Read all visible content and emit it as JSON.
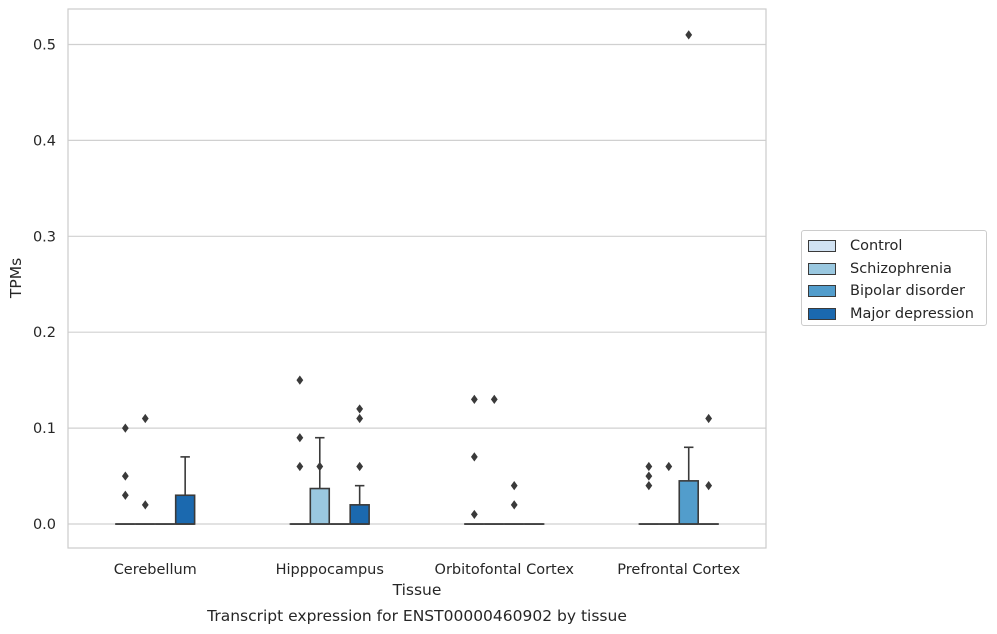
{
  "chart_data": {
    "type": "box",
    "title": "",
    "caption": "Transcript expression for ENST00000460902 by tissue",
    "xlabel": "Tissue",
    "ylabel": "TPMs",
    "ylim": [
      -0.025,
      0.537
    ],
    "yticks": [
      0.0,
      0.1,
      0.2,
      0.3,
      0.4,
      0.5
    ],
    "ytick_labels": [
      "0.0",
      "0.1",
      "0.2",
      "0.3",
      "0.4",
      "0.5"
    ],
    "grid": true,
    "legend_position": "right",
    "categories": [
      "Cerebellum",
      "Hipppocampus",
      "Orbitofontal Cortex",
      "Prefrontal Cortex"
    ],
    "series": [
      {
        "name": "Control",
        "color": "#d1e2f2",
        "boxes": [
          {
            "q1": 0,
            "median": 0,
            "q3": 0,
            "whislo": 0,
            "whishi": 0,
            "fliers": [
              0.03,
              0.05,
              0.1
            ]
          },
          {
            "q1": 0,
            "median": 0,
            "q3": 0,
            "whislo": 0,
            "whishi": 0,
            "fliers": [
              0.06,
              0.09,
              0.15
            ]
          },
          {
            "q1": 0,
            "median": 0,
            "q3": 0,
            "whislo": 0,
            "whishi": 0,
            "fliers": [
              0.01,
              0.07,
              0.13
            ]
          },
          {
            "q1": 0,
            "median": 0,
            "q3": 0,
            "whislo": 0,
            "whishi": 0,
            "fliers": [
              0.04,
              0.05,
              0.06
            ]
          }
        ]
      },
      {
        "name": "Schizophrenia",
        "color": "#9ac8e0",
        "boxes": [
          {
            "q1": 0,
            "median": 0,
            "q3": 0,
            "whislo": 0,
            "whishi": 0,
            "fliers": [
              0.02,
              0.11
            ]
          },
          {
            "q1": 0,
            "median": 0,
            "q3": 0.037,
            "whislo": 0,
            "whishi": 0.09,
            "fliers": [
              0.06
            ]
          },
          {
            "q1": 0,
            "median": 0,
            "q3": 0,
            "whislo": 0,
            "whishi": 0,
            "fliers": [
              0.13
            ]
          },
          {
            "q1": 0,
            "median": 0,
            "q3": 0,
            "whislo": 0,
            "whishi": 0,
            "fliers": [
              0.06
            ]
          }
        ]
      },
      {
        "name": "Bipolar disorder",
        "color": "#529dcc",
        "boxes": [
          {
            "q1": 0,
            "median": 0,
            "q3": 0,
            "whislo": 0,
            "whishi": 0,
            "fliers": []
          },
          {
            "q1": 0,
            "median": 0,
            "q3": 0,
            "whislo": 0,
            "whishi": 0,
            "fliers": []
          },
          {
            "q1": 0,
            "median": 0,
            "q3": 0,
            "whislo": 0,
            "whishi": 0,
            "fliers": [
              0.02,
              0.04
            ]
          },
          {
            "q1": 0,
            "median": 0,
            "q3": 0.045,
            "whislo": 0,
            "whishi": 0.08,
            "fliers": [
              0.51
            ]
          }
        ]
      },
      {
        "name": "Major depression",
        "color": "#1b69af",
        "boxes": [
          {
            "q1": 0,
            "median": 0,
            "q3": 0.03,
            "whislo": 0,
            "whishi": 0.07,
            "fliers": []
          },
          {
            "q1": 0,
            "median": 0,
            "q3": 0.02,
            "whislo": 0,
            "whishi": 0.04,
            "fliers": [
              0.06,
              0.11,
              0.12
            ]
          },
          {
            "q1": 0,
            "median": 0,
            "q3": 0,
            "whislo": 0,
            "whishi": 0,
            "fliers": []
          },
          {
            "q1": 0,
            "median": 0,
            "q3": 0,
            "whislo": 0,
            "whishi": 0,
            "fliers": [
              0.04,
              0.11
            ]
          }
        ]
      }
    ]
  }
}
